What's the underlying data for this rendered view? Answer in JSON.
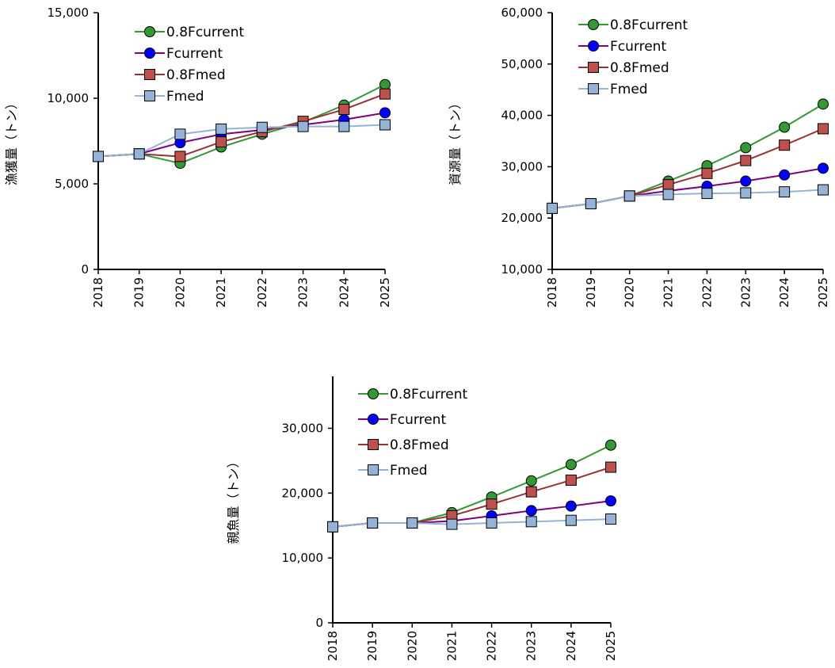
{
  "chart_data": [
    {
      "id": "catch",
      "type": "line",
      "ylabel": "漁獲量（トン）",
      "ylim": [
        0,
        15000
      ],
      "yticks": [
        0,
        5000,
        10000,
        15000
      ],
      "ytick_labels": [
        "0",
        "5,000",
        "10,000",
        "15,000"
      ],
      "categories": [
        "2018",
        "2019",
        "2020",
        "2021",
        "2022",
        "2023",
        "2024",
        "2025"
      ],
      "legend_position": "top-left",
      "series": [
        {
          "name": "0.8Fcurrent",
          "color": "#339933",
          "marker": "circle",
          "values": [
            6600,
            6750,
            6200,
            7150,
            7900,
            8600,
            9600,
            10800
          ]
        },
        {
          "name": "Fcurrent",
          "color": "#0000ff",
          "line_color": "#800080",
          "marker": "circle",
          "values": [
            6600,
            6750,
            7400,
            7900,
            8150,
            8450,
            8750,
            9150
          ]
        },
        {
          "name": "0.8Fmed",
          "color": "#c0504d",
          "line_color": "#993333",
          "marker": "square",
          "values": [
            6600,
            6750,
            6600,
            7450,
            8050,
            8650,
            9350,
            10250
          ]
        },
        {
          "name": "Fmed",
          "color": "#95b3d7",
          "line_color": "#95b3d7",
          "marker": "square",
          "values": [
            6600,
            6750,
            7900,
            8200,
            8300,
            8350,
            8350,
            8450
          ]
        }
      ]
    },
    {
      "id": "biomass",
      "type": "line",
      "ylabel": "資源量（トン）",
      "ylim": [
        10000,
        60000
      ],
      "yticks": [
        10000,
        20000,
        30000,
        40000,
        50000,
        60000
      ],
      "ytick_labels": [
        "10,000",
        "20,000",
        "30,000",
        "40,000",
        "50,000",
        "60,000"
      ],
      "categories": [
        "2018",
        "2019",
        "2020",
        "2021",
        "2022",
        "2023",
        "2024",
        "2025"
      ],
      "legend_position": "top-left",
      "series": [
        {
          "name": "0.8Fcurrent",
          "color": "#339933",
          "marker": "circle",
          "values": [
            21900,
            22800,
            24300,
            27200,
            30200,
            33700,
            37700,
            42200
          ]
        },
        {
          "name": "Fcurrent",
          "color": "#0000ff",
          "line_color": "#800080",
          "marker": "circle",
          "values": [
            21900,
            22800,
            24300,
            25300,
            26200,
            27200,
            28400,
            29700
          ]
        },
        {
          "name": "0.8Fmed",
          "color": "#c0504d",
          "line_color": "#993333",
          "marker": "square",
          "values": [
            21900,
            22800,
            24300,
            26500,
            28700,
            31200,
            34200,
            37400
          ]
        },
        {
          "name": "Fmed",
          "color": "#95b3d7",
          "line_color": "#95b3d7",
          "marker": "square",
          "values": [
            21900,
            22800,
            24300,
            24600,
            24800,
            24900,
            25100,
            25500
          ]
        }
      ]
    },
    {
      "id": "ssb",
      "type": "line",
      "ylabel": "親魚量（トン）",
      "ylim": [
        0,
        38000
      ],
      "yticks": [
        0,
        10000,
        20000,
        30000
      ],
      "ytick_labels": [
        "0",
        "10,000",
        "20,000",
        "30,000"
      ],
      "categories": [
        "2018",
        "2019",
        "2020",
        "2021",
        "2022",
        "2023",
        "2024",
        "2025"
      ],
      "legend_position": "top-left",
      "series": [
        {
          "name": "0.8Fcurrent",
          "color": "#339933",
          "marker": "circle",
          "values": [
            14800,
            15400,
            15400,
            17000,
            19400,
            21900,
            24400,
            27400
          ]
        },
        {
          "name": "Fcurrent",
          "color": "#0000ff",
          "line_color": "#800080",
          "marker": "circle",
          "values": [
            14800,
            15400,
            15400,
            15700,
            16500,
            17300,
            18000,
            18800
          ]
        },
        {
          "name": "0.8Fmed",
          "color": "#c0504d",
          "line_color": "#993333",
          "marker": "square",
          "values": [
            14800,
            15400,
            15400,
            16500,
            18300,
            20200,
            22000,
            24000
          ]
        },
        {
          "name": "Fmed",
          "color": "#95b3d7",
          "line_color": "#95b3d7",
          "marker": "square",
          "values": [
            14800,
            15400,
            15400,
            15200,
            15400,
            15600,
            15800,
            16000
          ]
        }
      ]
    }
  ]
}
